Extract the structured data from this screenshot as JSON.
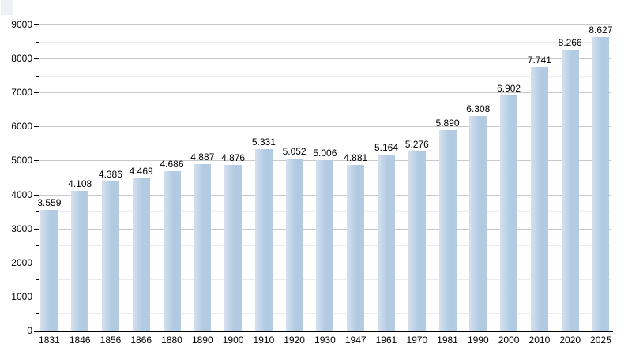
{
  "chart_data": {
    "type": "bar",
    "title": "",
    "categories": [
      "1831",
      "1846",
      "1856",
      "1866",
      "1880",
      "1890",
      "1900",
      "1910",
      "1920",
      "1930",
      "1947",
      "1961",
      "1970",
      "1981",
      "1990",
      "2000",
      "2010",
      "2020",
      "2025"
    ],
    "values": [
      3559,
      4108,
      4386,
      4469,
      4686,
      4887,
      4876,
      5331,
      5052,
      5006,
      4881,
      5164,
      5276,
      5890,
      6308,
      6902,
      7741,
      8266,
      8627
    ],
    "value_labels": [
      "3.559",
      "4.108",
      "4.386",
      "4.469",
      "4.686",
      "4.887",
      "4.876",
      "5.331",
      "5.052",
      "5.006",
      "4.881",
      "5.164",
      "5.276",
      "5.890",
      "6.308",
      "6.902",
      "7.741",
      "8.266",
      "8.627"
    ],
    "y_tick_labels": [
      "0",
      "1000",
      "2000",
      "3000",
      "4000",
      "5000",
      "6000",
      "7000",
      "8000",
      "9000"
    ],
    "ylim": [
      0,
      9000
    ],
    "y_major_step": 1000,
    "y_minor_step": 500,
    "xlabel": "",
    "ylabel": "",
    "grid": "horizontal, major and minor lines",
    "legend_position": "none",
    "colors": {
      "bar": "#b2cbe3",
      "bar_highlight": "#d5e1f0",
      "grid_major": "#c8c8c8",
      "grid_minor": "#ebebeb",
      "axis": "#000000",
      "text": "#000000",
      "background": "#ffffff",
      "corner_swatch": "#edf1f6"
    }
  }
}
